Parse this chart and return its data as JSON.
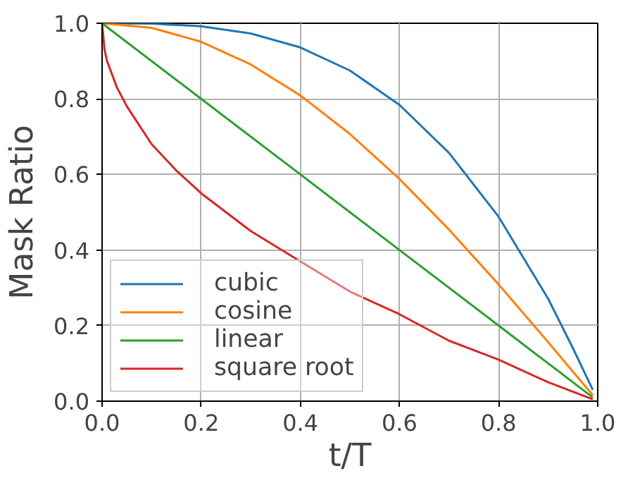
{
  "chart_data": {
    "type": "line",
    "xlabel": "t/T",
    "ylabel": "Mask Ratio",
    "xlim": [
      0,
      1
    ],
    "ylim": [
      0,
      1
    ],
    "xticks": [
      {
        "value": 0,
        "label": "0.0"
      },
      0.2,
      0.4,
      0.6,
      0.8,
      {
        "value": 1,
        "label": "1.0"
      }
    ],
    "yticks": [
      {
        "value": 0,
        "label": "0.0"
      },
      0.2,
      0.4,
      0.6,
      0.8,
      {
        "value": 1,
        "label": "1.0"
      }
    ],
    "grid": true,
    "legend": "bottom left",
    "marker": "none",
    "line_style": "solid",
    "series": [
      {
        "name": "cubic",
        "color": "#1f77b4",
        "x": [
          0,
          0.1,
          0.2,
          0.3,
          0.4,
          0.5,
          0.6,
          0.7,
          0.8,
          0.9,
          0.95,
          0.99
        ],
        "values": [
          1,
          0.999,
          0.992,
          0.973,
          0.936,
          0.875,
          0.784,
          0.657,
          0.488,
          0.271,
          0.14,
          0.03
        ]
      },
      {
        "name": "cosine",
        "color": "#ff7f0e",
        "x": [
          0,
          0.1,
          0.2,
          0.3,
          0.4,
          0.5,
          0.6,
          0.7,
          0.8,
          0.9,
          0.95,
          0.99
        ],
        "values": [
          1,
          0.988,
          0.951,
          0.891,
          0.809,
          0.707,
          0.588,
          0.454,
          0.309,
          0.156,
          0.078,
          0.016
        ]
      },
      {
        "name": "linear",
        "color": "#2ca02c",
        "x": [
          0,
          0.2,
          0.4,
          0.6,
          0.8,
          0.99
        ],
        "values": [
          1,
          0.8,
          0.6,
          0.4,
          0.2,
          0.01
        ]
      },
      {
        "name": "square root",
        "color": "#d62728",
        "x": [
          0,
          0.005,
          0.01,
          0.03,
          0.05,
          0.1,
          0.15,
          0.2,
          0.3,
          0.4,
          0.5,
          0.6,
          0.7,
          0.8,
          0.9,
          0.99
        ],
        "values": [
          1,
          0.93,
          0.9,
          0.83,
          0.78,
          0.68,
          0.61,
          0.55,
          0.45,
          0.37,
          0.29,
          0.23,
          0.16,
          0.11,
          0.05,
          0.005
        ]
      }
    ]
  }
}
